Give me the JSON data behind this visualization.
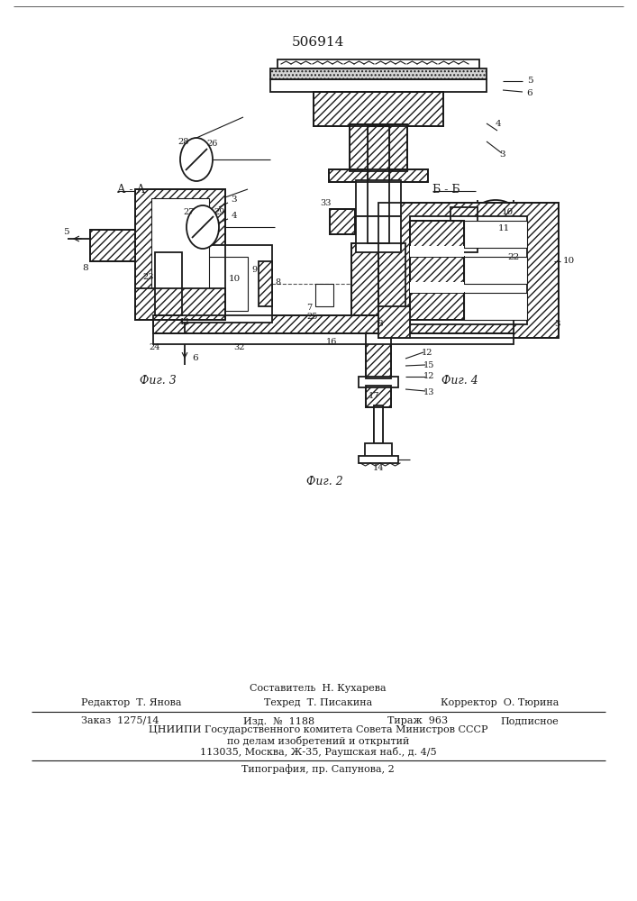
{
  "patent_number": "506914",
  "bg_color": "#ffffff",
  "line_color": "#1a1a1a",
  "fig2_label": "Фиг. 2",
  "fig3_label": "Фиг. 3",
  "fig4_label": "Фиг. 4",
  "aa_label": "А - А",
  "bb_label": "Б - Б",
  "footer_composer": "Составитель  Н. Кухарева",
  "footer_editor": "Редактор  Т. Янова",
  "footer_tech": "Техред  Т. Писакина",
  "footer_corrector": "Корректор  О. Тюрина",
  "footer_order": "Заказ  1275/14",
  "footer_edition": "Изд.  №  1188",
  "footer_copies": "Тираж  963",
  "footer_subscription": "Подписное",
  "footer_org": "ЦНИИПИ Государственного комитета Совета Министров СССР",
  "footer_dept": "по делам изобретений и открытий",
  "footer_address": "113035, Москва, Ж-35, Раушская наб., д. 4/5",
  "footer_print": "Типография, пр. Сапунова, 2"
}
